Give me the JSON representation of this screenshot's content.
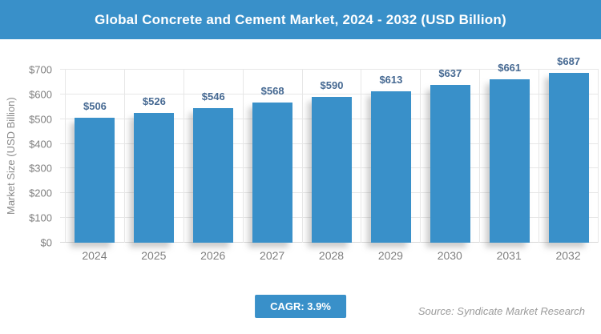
{
  "header": {
    "title": "Global Concrete and Cement Market, 2024 - 2032 (USD Billion)"
  },
  "chart_data": {
    "type": "bar",
    "title": "Global Concrete and Cement Market, 2024 - 2032 (USD Billion)",
    "categories": [
      "2024",
      "2025",
      "2026",
      "2027",
      "2028",
      "2029",
      "2030",
      "2031",
      "2032"
    ],
    "values": [
      506,
      526,
      546,
      568,
      590,
      613,
      637,
      661,
      687
    ],
    "value_labels": [
      "$506",
      "$526",
      "$546",
      "$568",
      "$590",
      "$613",
      "$637",
      "$661",
      "$687"
    ],
    "xlabel": "",
    "ylabel": "Market Size (USD Billion)",
    "ylim": [
      0,
      700
    ],
    "ytick_step": 100,
    "ytick_labels": [
      "$0",
      "$100",
      "$200",
      "$300",
      "$400",
      "$500",
      "$600",
      "$700"
    ],
    "grid": true,
    "legend": "none",
    "bar_color": "#3990c9",
    "value_label_color": "#476a93"
  },
  "footer": {
    "cagr_label": "CAGR: 3.9%",
    "source": "Source: Syndicate Market Research"
  },
  "colors": {
    "accent_blue": "#3990c9",
    "axis_text": "#7f7f7f",
    "gridline": "#e7e7e7",
    "source_text": "#9b9b9b",
    "background": "#ffffff"
  }
}
